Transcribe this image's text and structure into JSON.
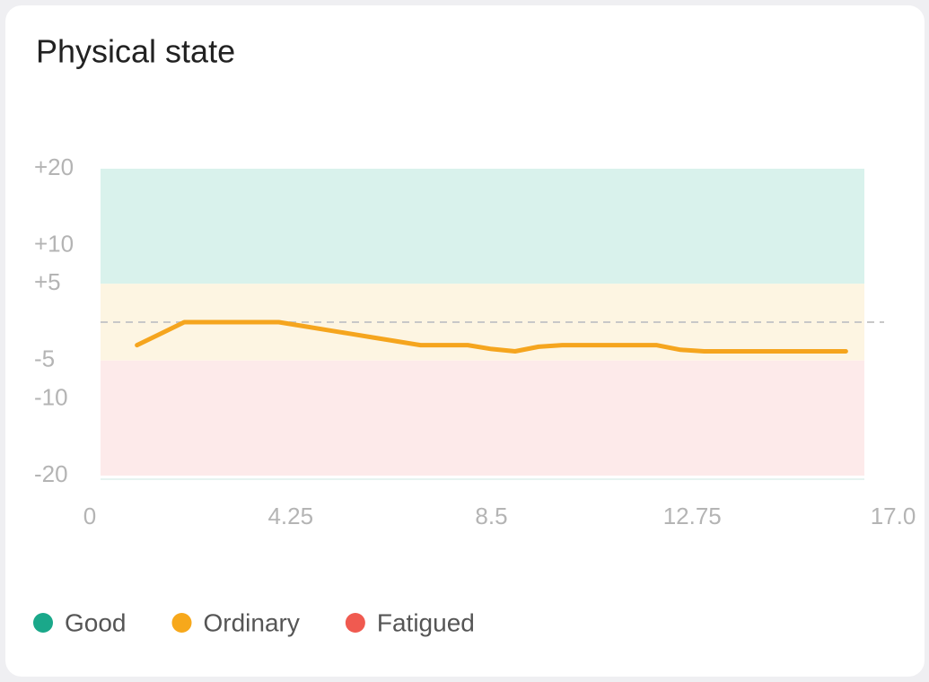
{
  "chart_data": {
    "type": "line",
    "title": "Physical state",
    "x": [
      1.0,
      1.5,
      2.0,
      2.5,
      3.0,
      3.5,
      4.0,
      4.5,
      5.0,
      5.5,
      6.0,
      6.5,
      7.0,
      7.5,
      8.0,
      8.5,
      9.0,
      9.5,
      10.0,
      10.5,
      11.0,
      11.5,
      12.0,
      12.5,
      13.0,
      13.5,
      14.0,
      14.5,
      15.0,
      15.5,
      16.0
    ],
    "series": [
      {
        "name": "Physical state",
        "color": "#f5a51e",
        "values": [
          -3,
          -1.5,
          0,
          0,
          0,
          0,
          0,
          -0.5,
          -1,
          -1.5,
          -2,
          -2.5,
          -3,
          -3,
          -3,
          -3.5,
          -3.8,
          -3.2,
          -3,
          -3,
          -3,
          -3,
          -3,
          -3.6,
          -3.8,
          -3.8,
          -3.8,
          -3.8,
          -3.8,
          -3.8,
          -3.8
        ]
      }
    ],
    "bands": [
      {
        "name": "Good",
        "color": "#1aa88a",
        "fill": "#d9f2ec",
        "from": 5,
        "to": 20
      },
      {
        "name": "Ordinary",
        "color": "#f7a81b",
        "fill": "#fdf5e2",
        "from": -5,
        "to": 5
      },
      {
        "name": "Fatigued",
        "color": "#f05a50",
        "fill": "#fdeaea",
        "from": -20,
        "to": -5
      }
    ],
    "reference_line": 0,
    "xlim": [
      0,
      17
    ],
    "xticks": [
      0,
      4.25,
      8.5,
      12.75,
      {
        "value": 17,
        "label": "17.0"
      }
    ],
    "ylim": [
      -20,
      20
    ],
    "yticks": [
      {
        "value": 20,
        "label": "+20"
      },
      {
        "value": 10,
        "label": "+10"
      },
      {
        "value": 5,
        "label": "+5"
      },
      -5,
      -10,
      -20
    ]
  }
}
